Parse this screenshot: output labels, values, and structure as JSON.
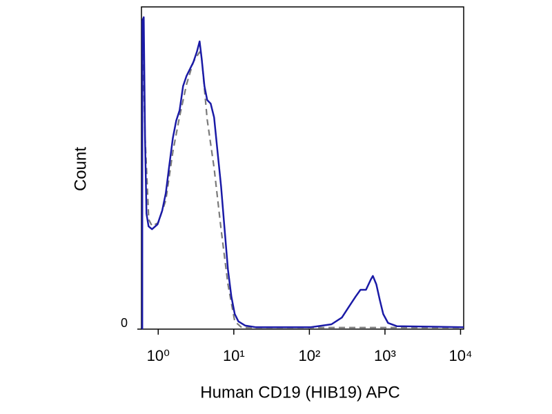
{
  "chart_data": {
    "type": "line",
    "x_label": "Human CD19 (HIB19) APC",
    "y_label": "Count",
    "xscale": "log",
    "xlim": [
      0.6,
      11000
    ],
    "ylim": [
      0,
      100
    ],
    "xticks": [
      {
        "value": 1,
        "label": "10⁰"
      },
      {
        "value": 10,
        "label": "10¹"
      },
      {
        "value": 100,
        "label": "10²"
      },
      {
        "value": 1000,
        "label": "10³"
      },
      {
        "value": 10000,
        "label": "10⁴"
      }
    ],
    "yticks": [
      0
    ],
    "series": [
      {
        "color": "#7a7a7a",
        "dash": true,
        "x": [
          0.617,
          0.67,
          0.75,
          0.83,
          1.0,
          1.26,
          1.56,
          1.92,
          2.37,
          2.92,
          3.53,
          3.76,
          4.45,
          5.49,
          6.78,
          8.36,
          10.3,
          12.7,
          11000
        ],
        "values": [
          95,
          60,
          34,
          32,
          33,
          40,
          55,
          66,
          76,
          83,
          86,
          84,
          65,
          50,
          31,
          14,
          2.4,
          0.5,
          0.5
        ]
      },
      {
        "color": "#1a1aa6",
        "dash": false,
        "x": [
          0.615,
          0.617,
          0.643,
          0.67,
          0.7,
          0.745,
          0.828,
          0.98,
          1.13,
          1.26,
          1.4,
          1.56,
          1.73,
          1.92,
          2.13,
          2.37,
          2.63,
          2.92,
          3.25,
          3.53,
          3.76,
          4.09,
          4.45,
          4.94,
          5.49,
          6.1,
          6.78,
          7.53,
          8.36,
          9.29,
          10.3,
          11.5,
          14.2,
          19.4,
          104,
          196,
          269,
          332,
          409,
          474,
          561,
          650,
          692,
          769,
          855,
          949,
          1099,
          1445,
          11000
        ],
        "values": [
          0,
          95.7,
          96.8,
          59.3,
          35.8,
          31.9,
          31.0,
          32.5,
          36.8,
          42.2,
          50.7,
          59.3,
          64.7,
          67.9,
          75.4,
          78.6,
          80.7,
          82.9,
          86.1,
          89.3,
          83.9,
          75.4,
          71.1,
          70.0,
          65.7,
          55.0,
          44.3,
          31.5,
          18.6,
          10.1,
          4.7,
          2.4,
          1.1,
          0.6,
          0.6,
          1.5,
          3.6,
          6.9,
          10.1,
          12.2,
          12.2,
          15.4,
          16.5,
          13.9,
          9.0,
          4.7,
          1.9,
          0.9,
          0.6
        ]
      }
    ]
  }
}
